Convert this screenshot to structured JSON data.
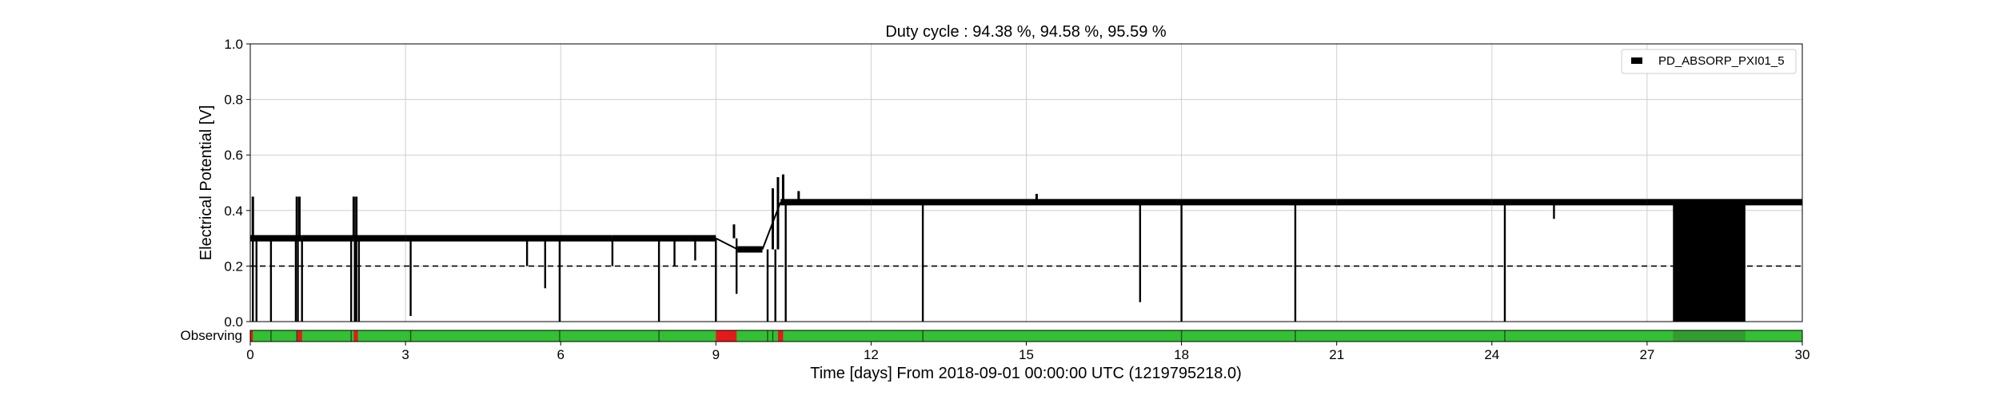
{
  "chart_data": {
    "type": "line",
    "title": "Duty cycle : 94.38 %, 94.58 %, 95.59 %",
    "xlabel": "Time [days] From 2018-09-01 00:00:00 UTC (1219795218.0)",
    "ylabel": "Electrical Potential [V]",
    "xlim": [
      0,
      30
    ],
    "ylim": [
      0,
      1.0
    ],
    "xticks": [
      0,
      3,
      6,
      9,
      12,
      15,
      18,
      21,
      24,
      27,
      30
    ],
    "yticks": [
      "0.0",
      "0.2",
      "0.4",
      "0.6",
      "0.8",
      "1.0"
    ],
    "grid": true,
    "legend": {
      "position": "top-right",
      "entries": [
        "PD_ABSORP_PXI01_5"
      ]
    },
    "threshold": {
      "value": 0.2,
      "style": "dashed"
    },
    "series": [
      {
        "name": "PD_ABSORP_PXI01_5",
        "color": "#000000",
        "baseline": [
          [
            0.0,
            0.3
          ],
          [
            1.0,
            0.3
          ],
          [
            2.0,
            0.3
          ],
          [
            3.0,
            0.3
          ],
          [
            5.0,
            0.3
          ],
          [
            7.0,
            0.3
          ],
          [
            8.5,
            0.3
          ],
          [
            9.0,
            0.3
          ],
          [
            9.42,
            0.26
          ],
          [
            9.9,
            0.26
          ],
          [
            10.25,
            0.43
          ],
          [
            12.0,
            0.43
          ],
          [
            15.0,
            0.43
          ],
          [
            18.0,
            0.43
          ],
          [
            21.0,
            0.43
          ],
          [
            24.0,
            0.43
          ],
          [
            27.0,
            0.43
          ],
          [
            30.0,
            0.43
          ]
        ],
        "spikes_up": [
          [
            0.05,
            0.45
          ],
          [
            0.9,
            0.45
          ],
          [
            0.95,
            0.45
          ],
          [
            2.0,
            0.45
          ],
          [
            2.05,
            0.45
          ],
          [
            9.35,
            0.35
          ],
          [
            10.1,
            0.48
          ],
          [
            10.2,
            0.52
          ],
          [
            10.3,
            0.53
          ],
          [
            10.6,
            0.47
          ],
          [
            15.2,
            0.46
          ]
        ],
        "dips": [
          [
            0.05,
            0.0
          ],
          [
            0.12,
            0.0
          ],
          [
            0.4,
            0.0
          ],
          [
            0.88,
            0.0
          ],
          [
            0.92,
            0.0
          ],
          [
            1.0,
            0.0
          ],
          [
            1.95,
            0.0
          ],
          [
            2.02,
            0.0
          ],
          [
            2.05,
            0.0
          ],
          [
            2.1,
            0.0
          ],
          [
            3.1,
            0.02
          ],
          [
            5.35,
            0.2
          ],
          [
            5.7,
            0.12
          ],
          [
            5.98,
            0.0
          ],
          [
            7.0,
            0.2
          ],
          [
            7.9,
            0.0
          ],
          [
            8.2,
            0.2
          ],
          [
            8.6,
            0.22
          ],
          [
            9.0,
            0.0
          ],
          [
            9.4,
            0.1
          ],
          [
            10.0,
            0.0
          ],
          [
            10.15,
            0.0
          ],
          [
            10.35,
            0.0
          ],
          [
            13.0,
            0.0
          ],
          [
            17.2,
            0.07
          ],
          [
            18.0,
            0.0
          ],
          [
            20.2,
            0.0
          ],
          [
            24.25,
            0.0
          ],
          [
            25.2,
            0.37
          ],
          [
            28.3,
            0.0
          ],
          [
            28.5,
            0.0
          ],
          [
            28.6,
            0.0
          ],
          [
            28.8,
            0.0
          ]
        ],
        "dense_band": [
          27.5,
          28.9,
          0.0,
          0.42
        ]
      }
    ],
    "observing_bar": {
      "label": "Observing",
      "on_color": "#33c033",
      "off_color": "#e41a1a",
      "off_segments": [
        [
          0.0,
          0.05
        ],
        [
          0.9,
          1.0
        ],
        [
          2.0,
          2.08
        ],
        [
          9.0,
          9.4
        ],
        [
          10.2,
          10.3
        ]
      ],
      "dark_marks": [
        0.4,
        0.9,
        1.95,
        3.1,
        5.98,
        7.9,
        10.0,
        10.1,
        13.0,
        18.0,
        20.2,
        24.25
      ]
    }
  }
}
